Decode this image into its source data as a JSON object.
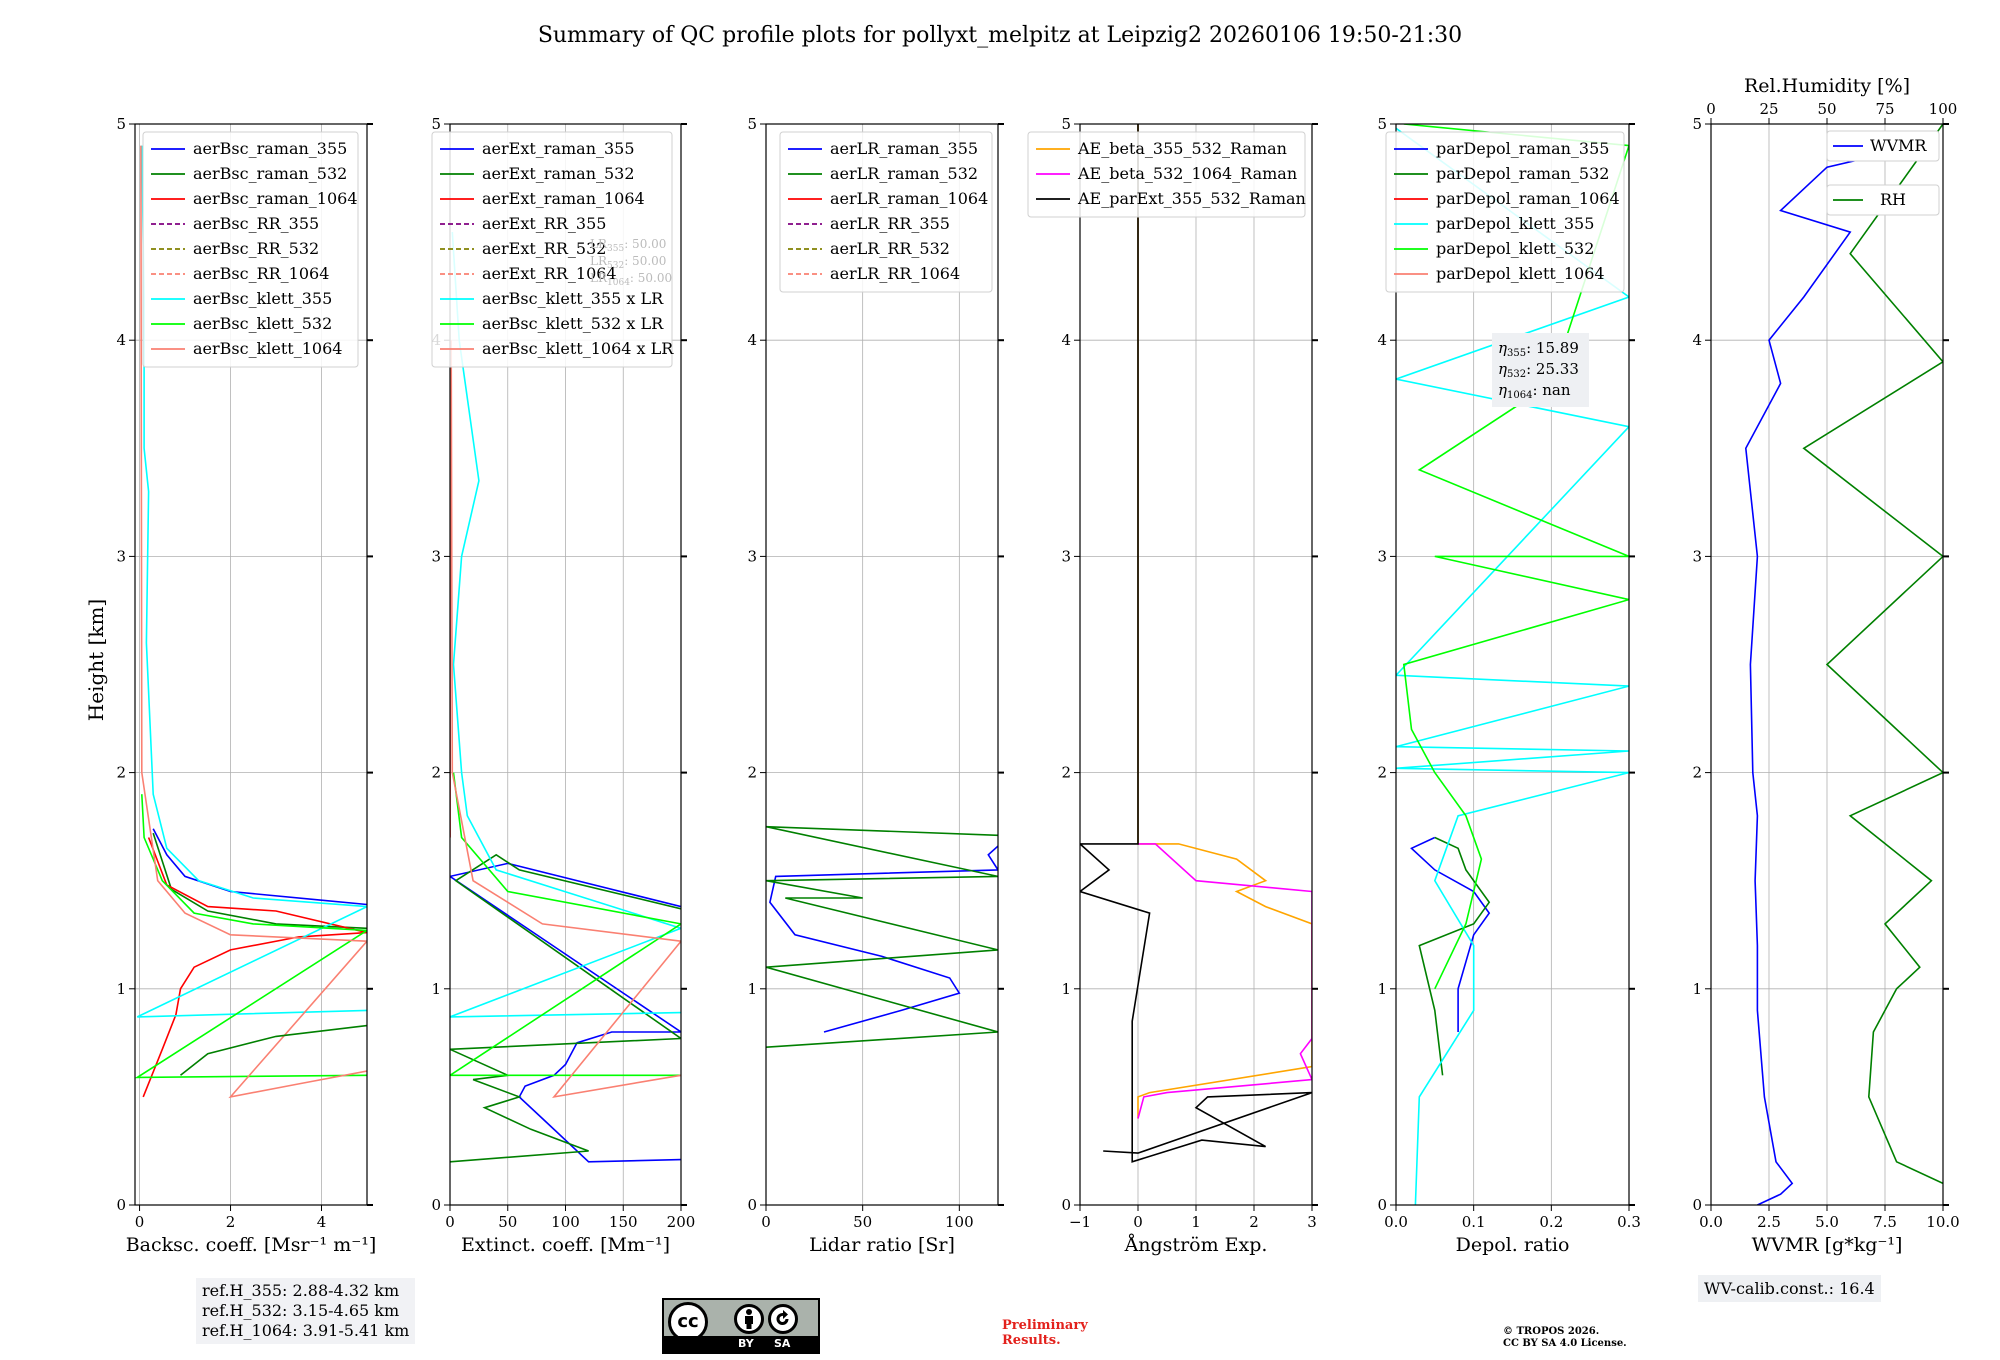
{
  "chart_data": [
    {
      "type": "line",
      "title": "Summary of QC profile plots for pollyxt_melpitz at Leipzig2 20260106 19:50-21:30",
      "xlabel": "Backsc. coeff. [Msr⁻¹ m⁻¹]",
      "ylabel": "Height [km]",
      "xlim": [
        -0.1,
        5
      ],
      "ylim": [
        0,
        5
      ],
      "xticks": [
        "0",
        "2",
        "4"
      ],
      "yticks": [
        "0",
        "1",
        "2",
        "3",
        "4",
        "5"
      ],
      "legend": "top-right",
      "series": [
        {
          "name": "aerBsc_raman_355",
          "color": "#0000ff",
          "x": [
            5,
            4.0,
            2.0,
            1.0,
            0.6,
            0.3
          ],
          "y": [
            1.39,
            1.41,
            1.45,
            1.52,
            1.62,
            1.74
          ]
        },
        {
          "name": "aerBsc_raman_532",
          "color": "#008000",
          "x": [
            5,
            3.0,
            1.5,
            0.7,
            0.3
          ],
          "y": [
            1.28,
            1.3,
            1.36,
            1.46,
            1.72
          ]
        },
        {
          "name": "aerBsc_raman_1064",
          "color": "#ff0000",
          "x": [
            0.08,
            0.5,
            0.8,
            0.9,
            1.2,
            2.0,
            3.5,
            5,
            3.0,
            1.5,
            0.6,
            0.2
          ],
          "y": [
            0.5,
            0.72,
            0.88,
            1.0,
            1.1,
            1.18,
            1.24,
            1.26,
            1.36,
            1.38,
            1.48,
            1.7
          ]
        },
        {
          "name": "aerBsc_RR_355",
          "color": "#800080",
          "dash": true,
          "x": [],
          "y": []
        },
        {
          "name": "aerBsc_RR_532",
          "color": "#808000",
          "dash": true,
          "x": [],
          "y": []
        },
        {
          "name": "aerBsc_RR_1064",
          "color": "#fa8072",
          "dash": true,
          "x": [],
          "y": []
        },
        {
          "name": "aerBsc_klett_355",
          "color": "#00ffff",
          "x": [
            0.05,
            0.1,
            0.1,
            0.2,
            0.15,
            0.3,
            0.6,
            1.3,
            2.5,
            5,
            -0.05,
            5
          ],
          "y": [
            4.9,
            4.2,
            3.5,
            3.3,
            2.6,
            1.9,
            1.65,
            1.5,
            1.42,
            1.38,
            0.87,
            0.9
          ]
        },
        {
          "name": "aerBsc_klett_532",
          "color": "#00ff00",
          "x": [
            0.05,
            0.1,
            0.5,
            1.2,
            2.5,
            5,
            -0.05,
            5
          ],
          "y": [
            1.9,
            1.7,
            1.5,
            1.35,
            1.3,
            1.27,
            0.59,
            0.6
          ]
        },
        {
          "name": "aerBsc_klett_1064",
          "color": "#fa8072",
          "x": [
            0.03,
            0.05,
            0.4,
            1.0,
            2.0,
            5,
            2.0,
            3.5,
            5
          ],
          "y": [
            4.9,
            2.0,
            1.5,
            1.35,
            1.25,
            1.22,
            0.5,
            0.56,
            0.62
          ]
        },
        {
          "name": "aerBsc_raman_532 (low)",
          "legend": false,
          "color": "#008000",
          "x": [
            0.9,
            1.5,
            3.0,
            5
          ],
          "y": [
            0.6,
            0.7,
            0.78,
            0.83
          ]
        }
      ]
    },
    {
      "type": "line",
      "xlabel": "Extinct. coeff. [Mm⁻¹]",
      "xlim": [
        0,
        200
      ],
      "ylim": [
        0,
        5
      ],
      "xticks": [
        "0",
        "50",
        "100",
        "150",
        "200"
      ],
      "yticks": [
        "0",
        "1",
        "2",
        "3",
        "4",
        "5"
      ],
      "legend": "top-right",
      "annotations": [
        "LR355: 50.00",
        "LR532: 50.00",
        "LR1064: 50.00"
      ],
      "series": [
        {
          "name": "aerExt_raman_355",
          "color": "#0000ff",
          "x": [
            200,
            120,
            80,
            60,
            65,
            90,
            100,
            110,
            140,
            200,
            0,
            50,
            200
          ],
          "y": [
            0.21,
            0.2,
            0.4,
            0.5,
            0.55,
            0.6,
            0.65,
            0.75,
            0.8,
            0.8,
            1.52,
            1.58,
            1.38
          ]
        },
        {
          "name": "aerExt_raman_532",
          "color": "#008000",
          "x": [
            0,
            120,
            70,
            30,
            60,
            20,
            50,
            0,
            200,
            5,
            40,
            60,
            200
          ],
          "y": [
            0.2,
            0.25,
            0.35,
            0.45,
            0.5,
            0.58,
            0.6,
            0.72,
            0.77,
            1.5,
            1.62,
            1.55,
            1.37
          ]
        },
        {
          "name": "aerExt_raman_1064",
          "color": "#ff0000",
          "x": [
            0,
            0
          ],
          "y": [
            4.0,
            1.7
          ]
        },
        {
          "name": "aerExt_RR_355",
          "color": "#800080",
          "dash": true,
          "x": [],
          "y": []
        },
        {
          "name": "aerExt_RR_532",
          "color": "#808000",
          "dash": true,
          "x": [],
          "y": []
        },
        {
          "name": "aerExt_RR_1064",
          "color": "#fa8072",
          "dash": true,
          "x": [],
          "y": []
        },
        {
          "name": "aerBsc_klett_355 x LR",
          "color": "#00ffff",
          "x": [
            2,
            8,
            25,
            10,
            3,
            10,
            15,
            40,
            200,
            0,
            200
          ],
          "y": [
            4.5,
            4.0,
            3.35,
            3.0,
            2.5,
            2.0,
            1.8,
            1.55,
            1.28,
            0.87,
            0.89
          ]
        },
        {
          "name": "aerBsc_klett_532 x LR",
          "color": "#00ff00",
          "x": [
            3,
            10,
            50,
            200,
            0,
            200
          ],
          "y": [
            2.0,
            1.7,
            1.45,
            1.3,
            0.6,
            0.6
          ]
        },
        {
          "name": "aerBsc_klett_1064 x LR",
          "color": "#fa8072",
          "x": [
            1,
            2,
            20,
            80,
            200,
            90,
            200
          ],
          "y": [
            4.0,
            2.0,
            1.5,
            1.3,
            1.22,
            0.5,
            0.6
          ]
        }
      ]
    },
    {
      "type": "line",
      "xlabel": "Lidar ratio [Sr]",
      "xlim": [
        0,
        120
      ],
      "ylim": [
        0,
        5
      ],
      "xticks": [
        "0",
        "50",
        "100"
      ],
      "yticks": [
        "0",
        "1",
        "2",
        "3",
        "4",
        "5"
      ],
      "legend": "top-right",
      "series": [
        {
          "name": "aerLR_raman_355",
          "color": "#0000ff",
          "x": [
            30,
            70,
            100,
            95,
            60,
            15,
            2,
            5,
            120,
            115,
            120
          ],
          "y": [
            0.8,
            0.9,
            0.98,
            1.05,
            1.15,
            1.25,
            1.4,
            1.52,
            1.55,
            1.62,
            1.66
          ]
        },
        {
          "name": "aerLR_raman_532",
          "color": "#008000",
          "x": [
            0,
            120,
            0,
            120,
            10,
            50,
            0,
            120,
            0,
            120
          ],
          "y": [
            0.73,
            0.8,
            1.1,
            1.18,
            1.42,
            1.42,
            1.5,
            1.52,
            1.75,
            1.71
          ]
        },
        {
          "name": "aerLR_raman_1064",
          "color": "#ff0000",
          "x": [],
          "y": []
        },
        {
          "name": "aerLR_RR_355",
          "color": "#800080",
          "dash": true,
          "x": [],
          "y": []
        },
        {
          "name": "aerLR_RR_532",
          "color": "#808000",
          "dash": true,
          "x": [],
          "y": []
        },
        {
          "name": "aerLR_RR_1064",
          "color": "#fa8072",
          "dash": true,
          "x": [],
          "y": []
        }
      ]
    },
    {
      "type": "line",
      "xlabel": "Ångström Exp.",
      "xlim": [
        -1,
        3
      ],
      "ylim": [
        0,
        5
      ],
      "xticks": [
        "−1",
        "0",
        "1",
        "2",
        "3"
      ],
      "yticks": [
        "0",
        "1",
        "2",
        "3",
        "4",
        "5"
      ],
      "legend": "top-left",
      "series": [
        {
          "name": "AE_beta_355_532_Raman",
          "color": "#ffa500",
          "x": [
            0,
            0.0,
            0.2,
            3.0,
            3.0,
            2.2,
            1.7,
            2.2,
            1.7,
            0.7,
            0,
            0
          ],
          "y": [
            0.4,
            0.5,
            0.52,
            0.64,
            1.3,
            1.38,
            1.45,
            1.5,
            1.6,
            1.67,
            1.67,
            5
          ]
        },
        {
          "name": "AE_beta_532_1064_Raman",
          "color": "#ff00ff",
          "x": [
            0,
            0.1,
            0.5,
            3.0,
            2.8,
            3.0,
            3.0,
            1.0,
            0.3,
            0
          ],
          "y": [
            0.4,
            0.5,
            0.52,
            0.58,
            0.7,
            0.77,
            1.45,
            1.5,
            1.67,
            1.67
          ]
        },
        {
          "name": "AE_parExt_355_532_Raman",
          "color": "#000000",
          "x": [
            -0.6,
            0,
            3.0,
            1.2,
            1.0,
            2.2,
            1.1,
            -0.1,
            -0.1,
            0.2,
            -1,
            -0.5,
            -1,
            0,
            0
          ],
          "y": [
            0.25,
            0.24,
            0.52,
            0.5,
            0.45,
            0.27,
            0.3,
            0.2,
            0.85,
            1.35,
            1.45,
            1.55,
            1.67,
            1.67,
            5
          ]
        }
      ]
    },
    {
      "type": "line",
      "xlabel": "Depol. ratio",
      "xlim": [
        0,
        0.3
      ],
      "ylim": [
        0,
        5
      ],
      "xticks": [
        "0.0",
        "0.1",
        "0.2",
        "0.3"
      ],
      "yticks": [
        "0",
        "1",
        "2",
        "3",
        "4",
        "5"
      ],
      "legend": "top-right",
      "annotations": [
        "η355: 15.89",
        "η532: 25.33",
        "η1064: nan"
      ],
      "series": [
        {
          "name": "parDepol_raman_355",
          "color": "#0000ff",
          "x": [
            0.08,
            0.08,
            0.1,
            0.12,
            0.1,
            0.05,
            0.02,
            0.05
          ],
          "y": [
            0.8,
            1.0,
            1.25,
            1.35,
            1.45,
            1.55,
            1.65,
            1.7
          ]
        },
        {
          "name": "parDepol_raman_532",
          "color": "#008000",
          "x": [
            0.06,
            0.05,
            0.03,
            0.1,
            0.12,
            0.09,
            0.08,
            0.05
          ],
          "y": [
            0.6,
            0.9,
            1.2,
            1.3,
            1.4,
            1.55,
            1.65,
            1.7
          ]
        },
        {
          "name": "parDepol_raman_1064",
          "color": "#ff0000",
          "x": [],
          "y": []
        },
        {
          "name": "parDepol_klett_355",
          "color": "#00ffff",
          "x": [
            0.025,
            0.03,
            0.1,
            0.1,
            0.05,
            0.08,
            0.3,
            0,
            0.3,
            0,
            0.3,
            0,
            0.3,
            0,
            0.3,
            0
          ],
          "y": [
            0,
            0.5,
            0.9,
            1.2,
            1.5,
            1.8,
            2.0,
            2.02,
            2.1,
            2.12,
            2.4,
            2.45,
            3.6,
            3.82,
            4.2,
            4.98
          ]
        },
        {
          "name": "parDepol_klett_532",
          "color": "#00ff00",
          "x": [
            0.05,
            0.09,
            0.11,
            0.09,
            0.05,
            0.02,
            0.01,
            0.3,
            0.05,
            0.3,
            0.03,
            0.2,
            0.3,
            0.01
          ],
          "y": [
            1.0,
            1.3,
            1.6,
            1.8,
            2.0,
            2.2,
            2.5,
            2.8,
            3.0,
            3.0,
            3.4,
            3.8,
            4.9,
            5.0
          ]
        },
        {
          "name": "parDepol_klett_1064",
          "color": "#fa8072",
          "x": [],
          "y": []
        }
      ]
    },
    {
      "type": "line",
      "xlabel": "WVMR [g*kg⁻¹]",
      "x2label": "Rel.Humidity [%]",
      "xlim": [
        0,
        10
      ],
      "x2lim": [
        0,
        100
      ],
      "ylim": [
        0,
        5
      ],
      "xticks": [
        "0.0",
        "2.5",
        "5.0",
        "7.5",
        "10.0"
      ],
      "x2ticks": [
        "0",
        "25",
        "50",
        "75",
        "100"
      ],
      "yticks": [
        "0",
        "1",
        "2",
        "3",
        "4",
        "5"
      ],
      "series": [
        {
          "name": "WVMR",
          "axis": "bottom",
          "color": "#0000ff",
          "x": [
            2.0,
            3.0,
            3.5,
            2.8,
            2.3,
            2.0,
            2.0,
            1.9,
            2.0,
            1.8,
            1.7,
            2.0,
            1.5,
            3.0,
            2.5,
            4.0,
            6.0,
            3.0,
            5.0,
            9.0
          ],
          "y": [
            0.0,
            0.05,
            0.1,
            0.2,
            0.5,
            0.9,
            1.2,
            1.5,
            1.8,
            2.0,
            2.5,
            3.0,
            3.5,
            3.8,
            4.0,
            4.2,
            4.5,
            4.6,
            4.8,
            4.9
          ]
        },
        {
          "name": "RH",
          "axis": "top",
          "color": "#008000",
          "x": [
            100,
            80,
            68,
            70,
            80,
            90,
            75,
            95,
            60,
            100,
            50,
            100,
            40,
            100,
            60,
            100
          ],
          "y": [
            0.1,
            0.2,
            0.5,
            0.8,
            1.0,
            1.1,
            1.3,
            1.5,
            1.8,
            2.0,
            2.5,
            3.0,
            3.5,
            3.9,
            4.4,
            5.0
          ]
        }
      ]
    }
  ],
  "ref_info": {
    "lines": [
      "ref.H_355: 2.88-4.32 km",
      "ref.H_532: 3.15-4.65 km",
      "ref.H_1064: 3.91-5.41 km"
    ]
  },
  "wv_info": {
    "text": "WV-calib.const.: 16.4"
  },
  "license_badge": {
    "by": "BY",
    "sa": "SA",
    "cc": "cc"
  },
  "preliminary": {
    "line1": "Preliminary",
    "line2": "Results."
  },
  "copyright": {
    "line1": "© TROPOS 2026.",
    "line2": "CC BY SA 4.0 License."
  }
}
